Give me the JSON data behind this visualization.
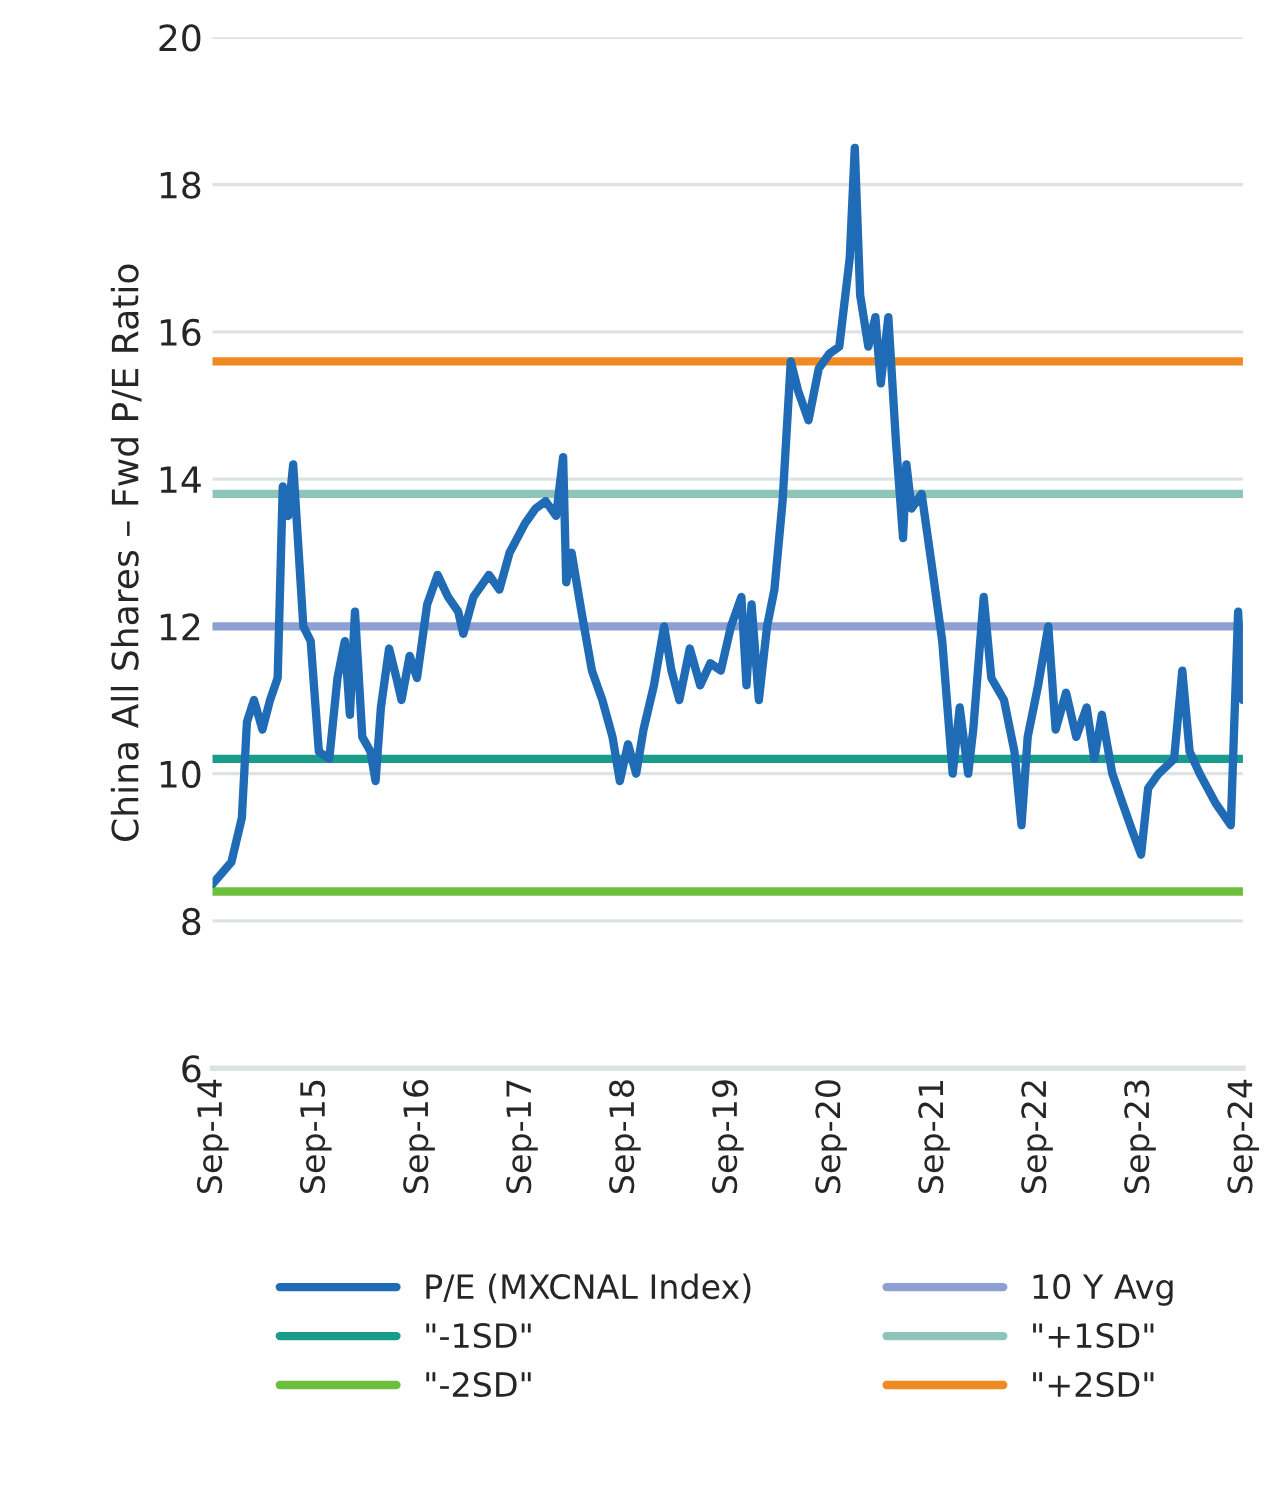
{
  "chart_data": {
    "type": "line",
    "ylabel": "China All Shares – Fwd P/E Ratio",
    "xlim": [
      "2014-09-01",
      "2024-09-01"
    ],
    "xticks": [
      {
        "value": "2014-09-01",
        "label": "Sep-14"
      },
      {
        "value": "2015-09-01",
        "label": "Sep-15"
      },
      {
        "value": "2016-09-01",
        "label": "Sep-16"
      },
      {
        "value": "2017-09-01",
        "label": "Sep-17"
      },
      {
        "value": "2018-09-01",
        "label": "Sep-18"
      },
      {
        "value": "2019-09-01",
        "label": "Sep-19"
      },
      {
        "value": "2020-09-01",
        "label": "Sep-20"
      },
      {
        "value": "2021-09-01",
        "label": "Sep-21"
      },
      {
        "value": "2022-09-01",
        "label": "Sep-22"
      },
      {
        "value": "2023-09-01",
        "label": "Sep-23"
      },
      {
        "value": "2024-09-01",
        "label": "Sep-24"
      }
    ],
    "ylim": [
      6,
      20
    ],
    "yticks": [
      6,
      8,
      10,
      12,
      14,
      16,
      18,
      20
    ],
    "grid": "y",
    "legend": "bottom",
    "series": [
      {
        "name": "P/E (MXCNAL Index)",
        "color": "#1f6bb5",
        "x": [
          "2014-09-01",
          "2014-11-07",
          "2014-12-14",
          "2015-01-01",
          "2015-01-26",
          "2015-02-25",
          "2015-03-24",
          "2015-04-20",
          "2015-05-08",
          "2015-05-27",
          "2015-06-14",
          "2015-07-20",
          "2015-08-15",
          "2015-09-13",
          "2015-10-20",
          "2015-11-18",
          "2015-12-14",
          "2016-01-01",
          "2016-01-19",
          "2016-02-14",
          "2016-03-14",
          "2016-04-01",
          "2016-04-20",
          "2016-05-19",
          "2016-06-14",
          "2016-07-02",
          "2016-07-31",
          "2016-08-26",
          "2016-10-01",
          "2016-11-07",
          "2016-12-14",
          "2017-01-19",
          "2017-02-06",
          "2017-03-14",
          "2017-05-08",
          "2017-06-14",
          "2017-07-20",
          "2017-09-13",
          "2017-10-20",
          "2017-11-25",
          "2018-01-01",
          "2018-01-26",
          "2018-02-06",
          "2018-02-25",
          "2018-04-01",
          "2018-05-08",
          "2018-06-14",
          "2018-07-20",
          "2018-08-15",
          "2018-09-13",
          "2018-10-12",
          "2018-11-07",
          "2018-12-14",
          "2019-01-19",
          "2019-02-14",
          "2019-03-14",
          "2019-04-20",
          "2019-05-27",
          "2019-07-02",
          "2019-08-08",
          "2019-09-13",
          "2019-10-20",
          "2019-11-07",
          "2019-11-25",
          "2019-12-21",
          "2020-01-19",
          "2020-02-14",
          "2020-03-14",
          "2020-04-12",
          "2020-05-08",
          "2020-06-14",
          "2020-07-20",
          "2020-08-26",
          "2020-10-01",
          "2020-11-07",
          "2020-11-25",
          "2020-12-14",
          "2021-01-12",
          "2021-02-06",
          "2021-02-25",
          "2021-03-24",
          "2021-04-20",
          "2021-05-15",
          "2021-05-27",
          "2021-06-14",
          "2021-07-20",
          "2021-08-26",
          "2021-10-01",
          "2021-11-07",
          "2021-12-02",
          "2022-01-01",
          "2022-01-19",
          "2022-02-25",
          "2022-03-24",
          "2022-05-08",
          "2022-06-14",
          "2022-07-09",
          "2022-07-31",
          "2022-09-06",
          "2022-10-12",
          "2022-11-07",
          "2022-12-14",
          "2023-01-19",
          "2023-02-25",
          "2023-03-24",
          "2023-04-20",
          "2023-05-27",
          "2023-07-02",
          "2023-08-08",
          "2023-09-06",
          "2023-10-01",
          "2023-11-07",
          "2024-01-01",
          "2024-01-30",
          "2024-02-25",
          "2024-04-01",
          "2024-05-27",
          "2024-07-20",
          "2024-08-15",
          "2024-09-01"
        ],
        "values": [
          8.5,
          8.8,
          9.4,
          10.7,
          11.0,
          10.6,
          11.0,
          11.3,
          13.9,
          13.5,
          14.2,
          12.0,
          11.8,
          10.3,
          10.2,
          11.3,
          11.8,
          10.8,
          12.2,
          10.5,
          10.3,
          9.9,
          10.9,
          11.7,
          11.3,
          11.0,
          11.6,
          11.3,
          12.3,
          12.7,
          12.4,
          12.2,
          11.9,
          12.4,
          12.7,
          12.5,
          13.0,
          13.4,
          13.6,
          13.7,
          13.5,
          14.3,
          12.6,
          13.0,
          12.2,
          11.4,
          11.0,
          10.5,
          9.9,
          10.4,
          10.0,
          10.6,
          11.2,
          12.0,
          11.4,
          11.0,
          11.7,
          11.2,
          11.5,
          11.4,
          12.0,
          12.4,
          11.2,
          12.3,
          11.0,
          12.0,
          12.5,
          13.7,
          15.6,
          15.2,
          14.8,
          15.5,
          15.7,
          15.8,
          17.0,
          18.5,
          16.5,
          15.8,
          16.2,
          15.3,
          16.2,
          14.5,
          13.2,
          14.2,
          13.6,
          13.8,
          12.8,
          11.8,
          10.0,
          10.9,
          10.0,
          10.6,
          12.4,
          11.3,
          11.0,
          10.3,
          9.3,
          10.5,
          11.2,
          12.0,
          10.6,
          11.1,
          10.5,
          10.9,
          10.2,
          10.8,
          10.0,
          9.6,
          9.2,
          8.9,
          9.8,
          10.0,
          10.2,
          11.4,
          10.3,
          10.0,
          9.6,
          9.3,
          12.2,
          11.0
        ]
      }
    ],
    "ref_lines": [
      {
        "axis": "y",
        "value": 12.0,
        "label": "10 Y Avg",
        "color": "#8e9fd4"
      },
      {
        "axis": "y",
        "value": 10.2,
        "label": "\"-1SD\"",
        "color": "#1a9c8c"
      },
      {
        "axis": "y",
        "value": 13.8,
        "label": "\"+1SD\"",
        "color": "#8ec5b8"
      },
      {
        "axis": "y",
        "value": 8.4,
        "label": "\"-2SD\"",
        "color": "#6cbf3c"
      },
      {
        "axis": "y",
        "value": 15.6,
        "label": "\"+2SD\"",
        "color": "#f08a22"
      }
    ]
  }
}
